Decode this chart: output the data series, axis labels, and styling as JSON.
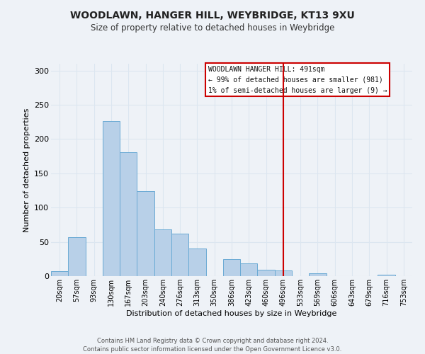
{
  "title": "WOODLAWN, HANGER HILL, WEYBRIDGE, KT13 9XU",
  "subtitle": "Size of property relative to detached houses in Weybridge",
  "xlabel": "Distribution of detached houses by size in Weybridge",
  "ylabel": "Number of detached properties",
  "footer_line1": "Contains HM Land Registry data © Crown copyright and database right 2024.",
  "footer_line2": "Contains public sector information licensed under the Open Government Licence v3.0.",
  "bin_labels": [
    "20sqm",
    "57sqm",
    "93sqm",
    "130sqm",
    "167sqm",
    "203sqm",
    "240sqm",
    "276sqm",
    "313sqm",
    "350sqm",
    "386sqm",
    "423sqm",
    "460sqm",
    "496sqm",
    "533sqm",
    "569sqm",
    "606sqm",
    "643sqm",
    "679sqm",
    "716sqm",
    "753sqm"
  ],
  "bar_values": [
    7,
    57,
    0,
    226,
    181,
    124,
    68,
    62,
    40,
    0,
    25,
    19,
    9,
    8,
    0,
    4,
    0,
    0,
    0,
    2,
    0
  ],
  "bar_color": "#b8d0e8",
  "bar_edge_color": "#6aaad4",
  "vline_x_index": 13,
  "vline_color": "#cc0000",
  "annotation_title": "WOODLAWN HANGER HILL: 491sqm",
  "annotation_line1": "← 99% of detached houses are smaller (981)",
  "annotation_line2": "1% of semi-detached houses are larger (9) →",
  "ylim": [
    0,
    310
  ],
  "yticks": [
    0,
    50,
    100,
    150,
    200,
    250,
    300
  ],
  "grid_color": "#dce6f0",
  "background_color": "#eef2f7",
  "title_fontsize": 10,
  "subtitle_fontsize": 8.5
}
